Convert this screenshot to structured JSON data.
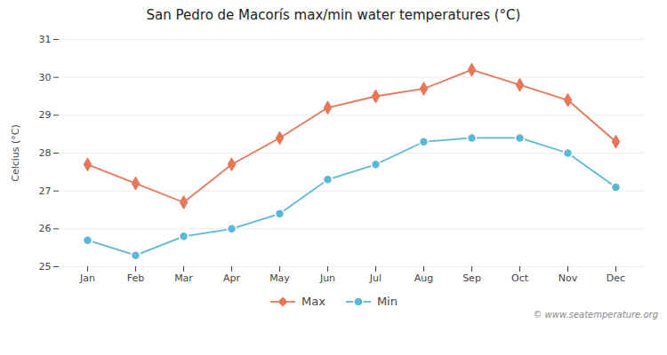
{
  "chart_data": {
    "type": "line",
    "title": "San Pedro de Macorís max/min water temperatures (°C)",
    "ylabel": "Celcius (°C)",
    "categories": [
      "Jan",
      "Feb",
      "Mar",
      "Apr",
      "May",
      "Jun",
      "Jul",
      "Aug",
      "Sep",
      "Oct",
      "Nov",
      "Dec"
    ],
    "series": [
      {
        "name": "Max",
        "color": "#e8775a",
        "marker": "diamond",
        "values": [
          27.7,
          27.2,
          26.7,
          27.7,
          28.4,
          29.2,
          29.5,
          29.7,
          30.2,
          29.8,
          29.4,
          28.3
        ]
      },
      {
        "name": "Min",
        "color": "#5bb8d4",
        "marker": "circle",
        "values": [
          25.7,
          25.3,
          25.8,
          26.0,
          26.4,
          27.3,
          27.7,
          28.3,
          28.4,
          28.4,
          28.0,
          27.1
        ]
      }
    ],
    "ylim": [
      25,
      31
    ],
    "yticks": [
      25,
      26,
      27,
      28,
      29,
      30,
      31
    ],
    "grid": true,
    "legend": "bottom",
    "annotations": [
      "© www.seatemperature.org"
    ]
  }
}
